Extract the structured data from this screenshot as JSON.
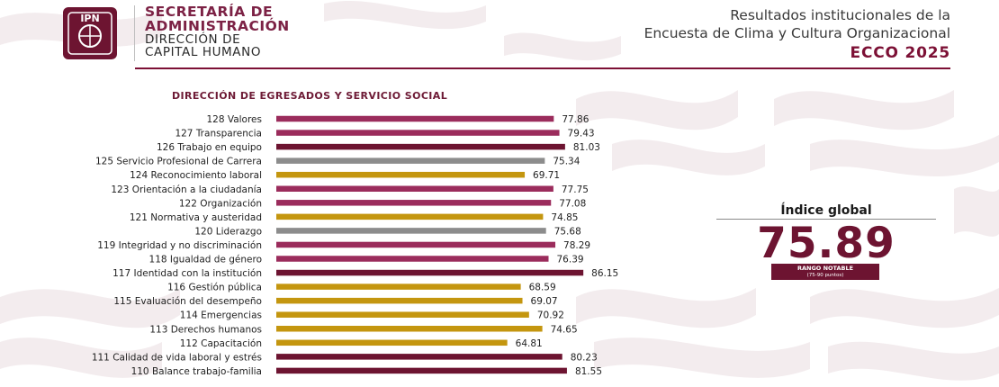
{
  "header": {
    "org_line1": "SECRETARÍA DE",
    "org_line2": "ADMINISTRACIÓN",
    "org_line3": "DIRECCIÓN DE",
    "org_line4": "CAPITAL HUMANO",
    "logo_text": "IPN",
    "report_line1": "Resultados institucionales de la",
    "report_line2": "Encuesta de Clima y Cultura Organizacional",
    "report_line3": "ECCO 2025"
  },
  "global_index": {
    "title": "Índice global",
    "value": "75.89",
    "range_label": "RANGO NOTABLE",
    "range_detail": "(75-90 puntos)"
  },
  "colors": {
    "maroon": "#6d1431",
    "pink": "#9b2c5c",
    "gold": "#c4960f",
    "gray": "#8c8c8c",
    "header_rule": "#7c1035"
  },
  "chart_data": {
    "type": "bar",
    "orientation": "horizontal",
    "title": "DIRECCIÓN DE EGRESADOS Y SERVICIO SOCIAL",
    "xlim": [
      0,
      100
    ],
    "grid": false,
    "categories": [
      "128 Valores",
      "127 Transparencia",
      "126 Trabajo en equipo",
      "125 Servicio Profesional de Carrera",
      "124 Reconocimiento laboral",
      "123 Orientación a la ciudadanía",
      "122 Organización",
      "121 Normativa y austeridad",
      "120 Liderazgo",
      "119 Integridad y no discriminación",
      "118 Igualdad de género",
      "117 Identidad con la institución",
      "116 Gestión pública",
      "115 Evaluación del desempeño",
      "114 Emergencias",
      "113 Derechos humanos",
      "112 Capacitación",
      "111 Calidad de vida laboral y estrés",
      "110 Balance trabajo-familia"
    ],
    "values": [
      77.86,
      79.43,
      81.03,
      75.34,
      69.71,
      77.75,
      77.08,
      74.85,
      75.68,
      78.29,
      76.39,
      86.15,
      68.59,
      69.07,
      70.92,
      74.65,
      64.81,
      80.23,
      81.55
    ],
    "labels": [
      "77.86",
      "79.43",
      "81.03",
      "75.34",
      "69.71",
      "77.75",
      "77.08",
      "74.85",
      "75.68",
      "78.29",
      "76.39",
      "86.15",
      "68.59",
      "69.07",
      "70.92",
      "74.65",
      "64.81",
      "80.23",
      "81.55"
    ],
    "bar_colors": [
      "pink",
      "pink",
      "maroon",
      "gray",
      "gold",
      "pink",
      "pink",
      "gold",
      "gray",
      "pink",
      "pink",
      "maroon",
      "gold",
      "gold",
      "gold",
      "gold",
      "gold",
      "maroon",
      "maroon"
    ]
  }
}
